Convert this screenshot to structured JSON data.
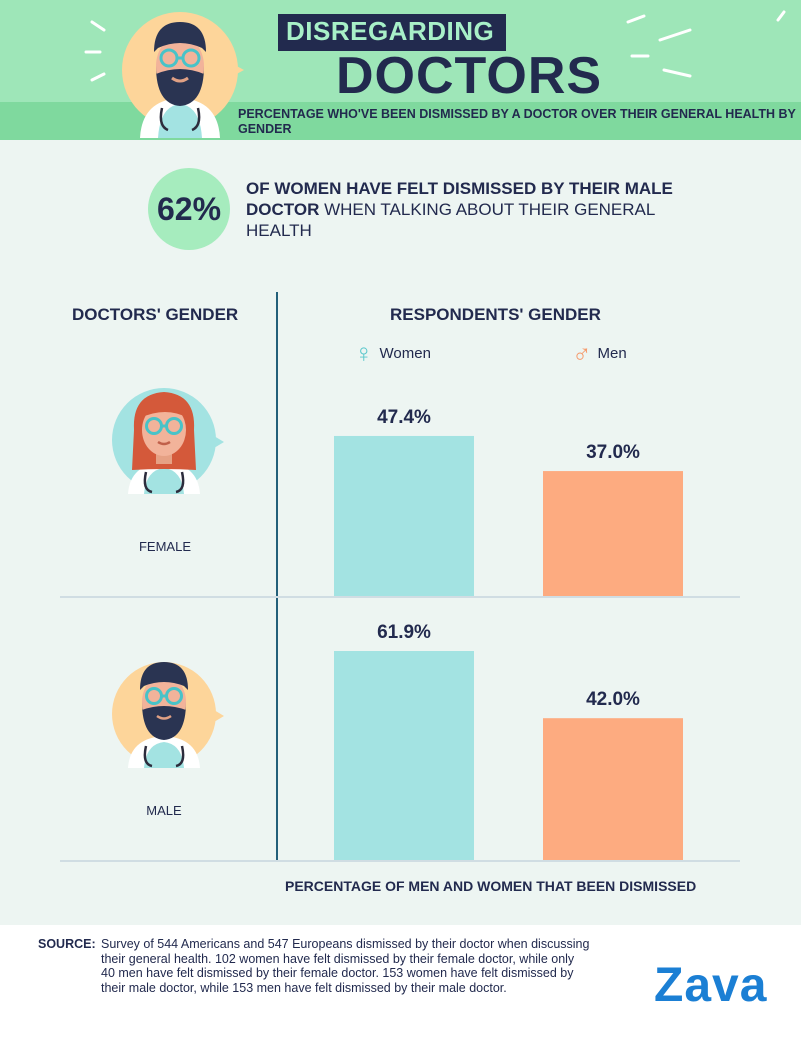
{
  "header": {
    "title_line1": "DISREGARDING",
    "title_line2": "DOCTORS",
    "subtitle": "PERCENTAGE WHO'VE BEEN DISMISSED BY A DOCTOR OVER THEIR GENERAL HEALTH BY GENDER"
  },
  "stat": {
    "value": "62%",
    "text_bold": "OF WOMEN HAVE FELT DISMISSED BY THEIR MALE DOCTOR",
    "text_rest": " WHEN TALKING ABOUT THEIR GENERAL HEALTH"
  },
  "columns": {
    "left": "DOCTORS' GENDER",
    "right": "RESPONDENTS' GENDER"
  },
  "legend": {
    "women": "Women",
    "men": "Men",
    "women_symbol": "♀",
    "men_symbol": "♂"
  },
  "rows": {
    "female": "FEMALE",
    "male": "MALE"
  },
  "colors": {
    "women": "#a3e3e2",
    "men": "#fdab80",
    "women_icon": "#5cc8cc",
    "men_icon": "#f59a6c"
  },
  "chart_data": {
    "type": "bar",
    "categories": [
      "FEMALE",
      "MALE"
    ],
    "series": [
      {
        "name": "Women",
        "values": [
          47.4,
          61.9
        ],
        "labels": [
          "47.4%",
          "61.9%"
        ]
      },
      {
        "name": "Men",
        "values": [
          37.0,
          42.0
        ],
        "labels": [
          "37.0%",
          "42.0%"
        ]
      }
    ],
    "xlabel": "PERCENTAGE OF MEN AND WOMEN THAT BEEN DISMISSED",
    "ylabel": "",
    "ylim": [
      0,
      61.9
    ]
  },
  "footer": {
    "source_label": "SOURCE:",
    "source_text": "Survey of 544 Americans and 547 Europeans dismissed by their doctor when discussing their general health. 102 women have felt dismissed by their female doctor, while only 40 men have felt dismissed by their female doctor. 153 women have felt dismissed by their male doctor, while 153 men have felt dismissed by their male doctor.",
    "brand": "Zava"
  }
}
